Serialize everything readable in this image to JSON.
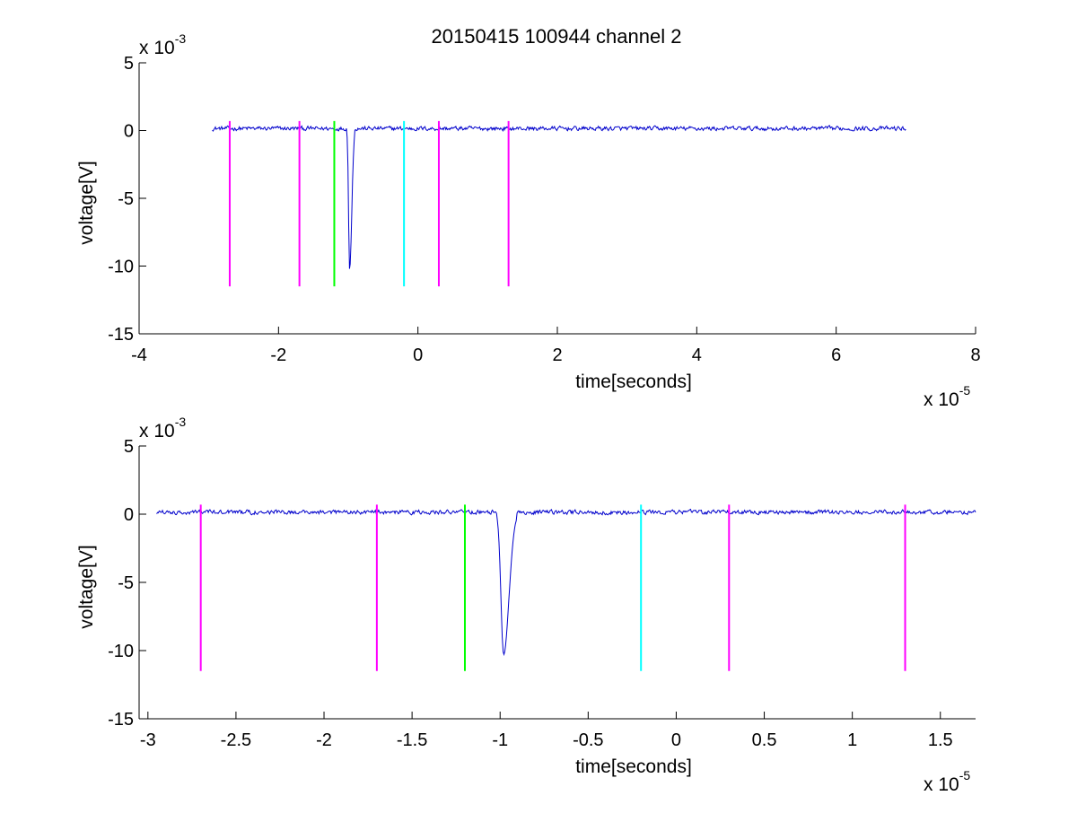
{
  "figure": {
    "title": "20150415 100944 channel 2"
  },
  "chart_data": [
    {
      "type": "line",
      "title": "20150415 100944 channel 2",
      "xlabel": "time[seconds]",
      "ylabel": "voltage[V]",
      "x_multiplier": "x 10",
      "x_multiplier_exp": "-5",
      "y_multiplier": "x 10",
      "y_multiplier_exp": "-3",
      "xlim": [
        -4,
        8
      ],
      "ylim": [
        -15,
        5
      ],
      "xticks": [
        -4,
        -2,
        0,
        2,
        4,
        6,
        8
      ],
      "xtick_labels": [
        "-4",
        "-2",
        "0",
        "2",
        "4",
        "6",
        "8"
      ],
      "yticks": [
        -15,
        -10,
        -5,
        0,
        5
      ],
      "ytick_labels": [
        "-15",
        "-10",
        "-5",
        "0",
        "5"
      ],
      "grid": false,
      "signal": {
        "color": "#0000cc",
        "x_range": [
          -2.95,
          7.0
        ],
        "baseline": 0.15,
        "noise_amplitude": 0.25,
        "dip": {
          "center": -0.98,
          "min": -10.3,
          "width": 0.03
        }
      },
      "markers": [
        {
          "x": -2.7,
          "y_top": 0.7,
          "y_bottom": -11.5,
          "color": "#ff00ff"
        },
        {
          "x": -1.7,
          "y_top": 0.7,
          "y_bottom": -11.5,
          "color": "#ff00ff"
        },
        {
          "x": -1.2,
          "y_top": 0.7,
          "y_bottom": -11.5,
          "color": "#00ff00"
        },
        {
          "x": -0.2,
          "y_top": 0.7,
          "y_bottom": -11.5,
          "color": "#00ffff"
        },
        {
          "x": 0.3,
          "y_top": 0.7,
          "y_bottom": -11.5,
          "color": "#ff00ff"
        },
        {
          "x": 1.3,
          "y_top": 0.7,
          "y_bottom": -11.5,
          "color": "#ff00ff"
        }
      ]
    },
    {
      "type": "line",
      "title": "",
      "xlabel": "time[seconds]",
      "ylabel": "voltage[V]",
      "x_multiplier": "x 10",
      "x_multiplier_exp": "-5",
      "y_multiplier": "x 10",
      "y_multiplier_exp": "-3",
      "xlim": [
        -3.05,
        1.7
      ],
      "ylim": [
        -15,
        5
      ],
      "xticks": [
        -3,
        -2.5,
        -2,
        -1.5,
        -1,
        -0.5,
        0,
        0.5,
        1,
        1.5
      ],
      "xtick_labels": [
        "-3",
        "-2.5",
        "-2",
        "-1.5",
        "-1",
        "-0.5",
        "0",
        "0.5",
        "1",
        "1.5"
      ],
      "yticks": [
        -15,
        -10,
        -5,
        0,
        5
      ],
      "ytick_labels": [
        "-15",
        "-10",
        "-5",
        "0",
        "5"
      ],
      "grid": false,
      "signal": {
        "color": "#0000cc",
        "x_range": [
          -2.95,
          1.7
        ],
        "baseline": 0.15,
        "noise_amplitude": 0.25,
        "dip": {
          "center": -0.98,
          "min": -10.3,
          "width": 0.03
        }
      },
      "markers": [
        {
          "x": -2.7,
          "y_top": 0.7,
          "y_bottom": -11.5,
          "color": "#ff00ff"
        },
        {
          "x": -1.7,
          "y_top": 0.7,
          "y_bottom": -11.5,
          "color": "#ff00ff"
        },
        {
          "x": -1.2,
          "y_top": 0.7,
          "y_bottom": -11.5,
          "color": "#00ff00"
        },
        {
          "x": -0.2,
          "y_top": 0.7,
          "y_bottom": -11.5,
          "color": "#00ffff"
        },
        {
          "x": 0.3,
          "y_top": 0.7,
          "y_bottom": -11.5,
          "color": "#ff00ff"
        },
        {
          "x": 1.3,
          "y_top": 0.7,
          "y_bottom": -11.5,
          "color": "#ff00ff"
        }
      ]
    }
  ]
}
